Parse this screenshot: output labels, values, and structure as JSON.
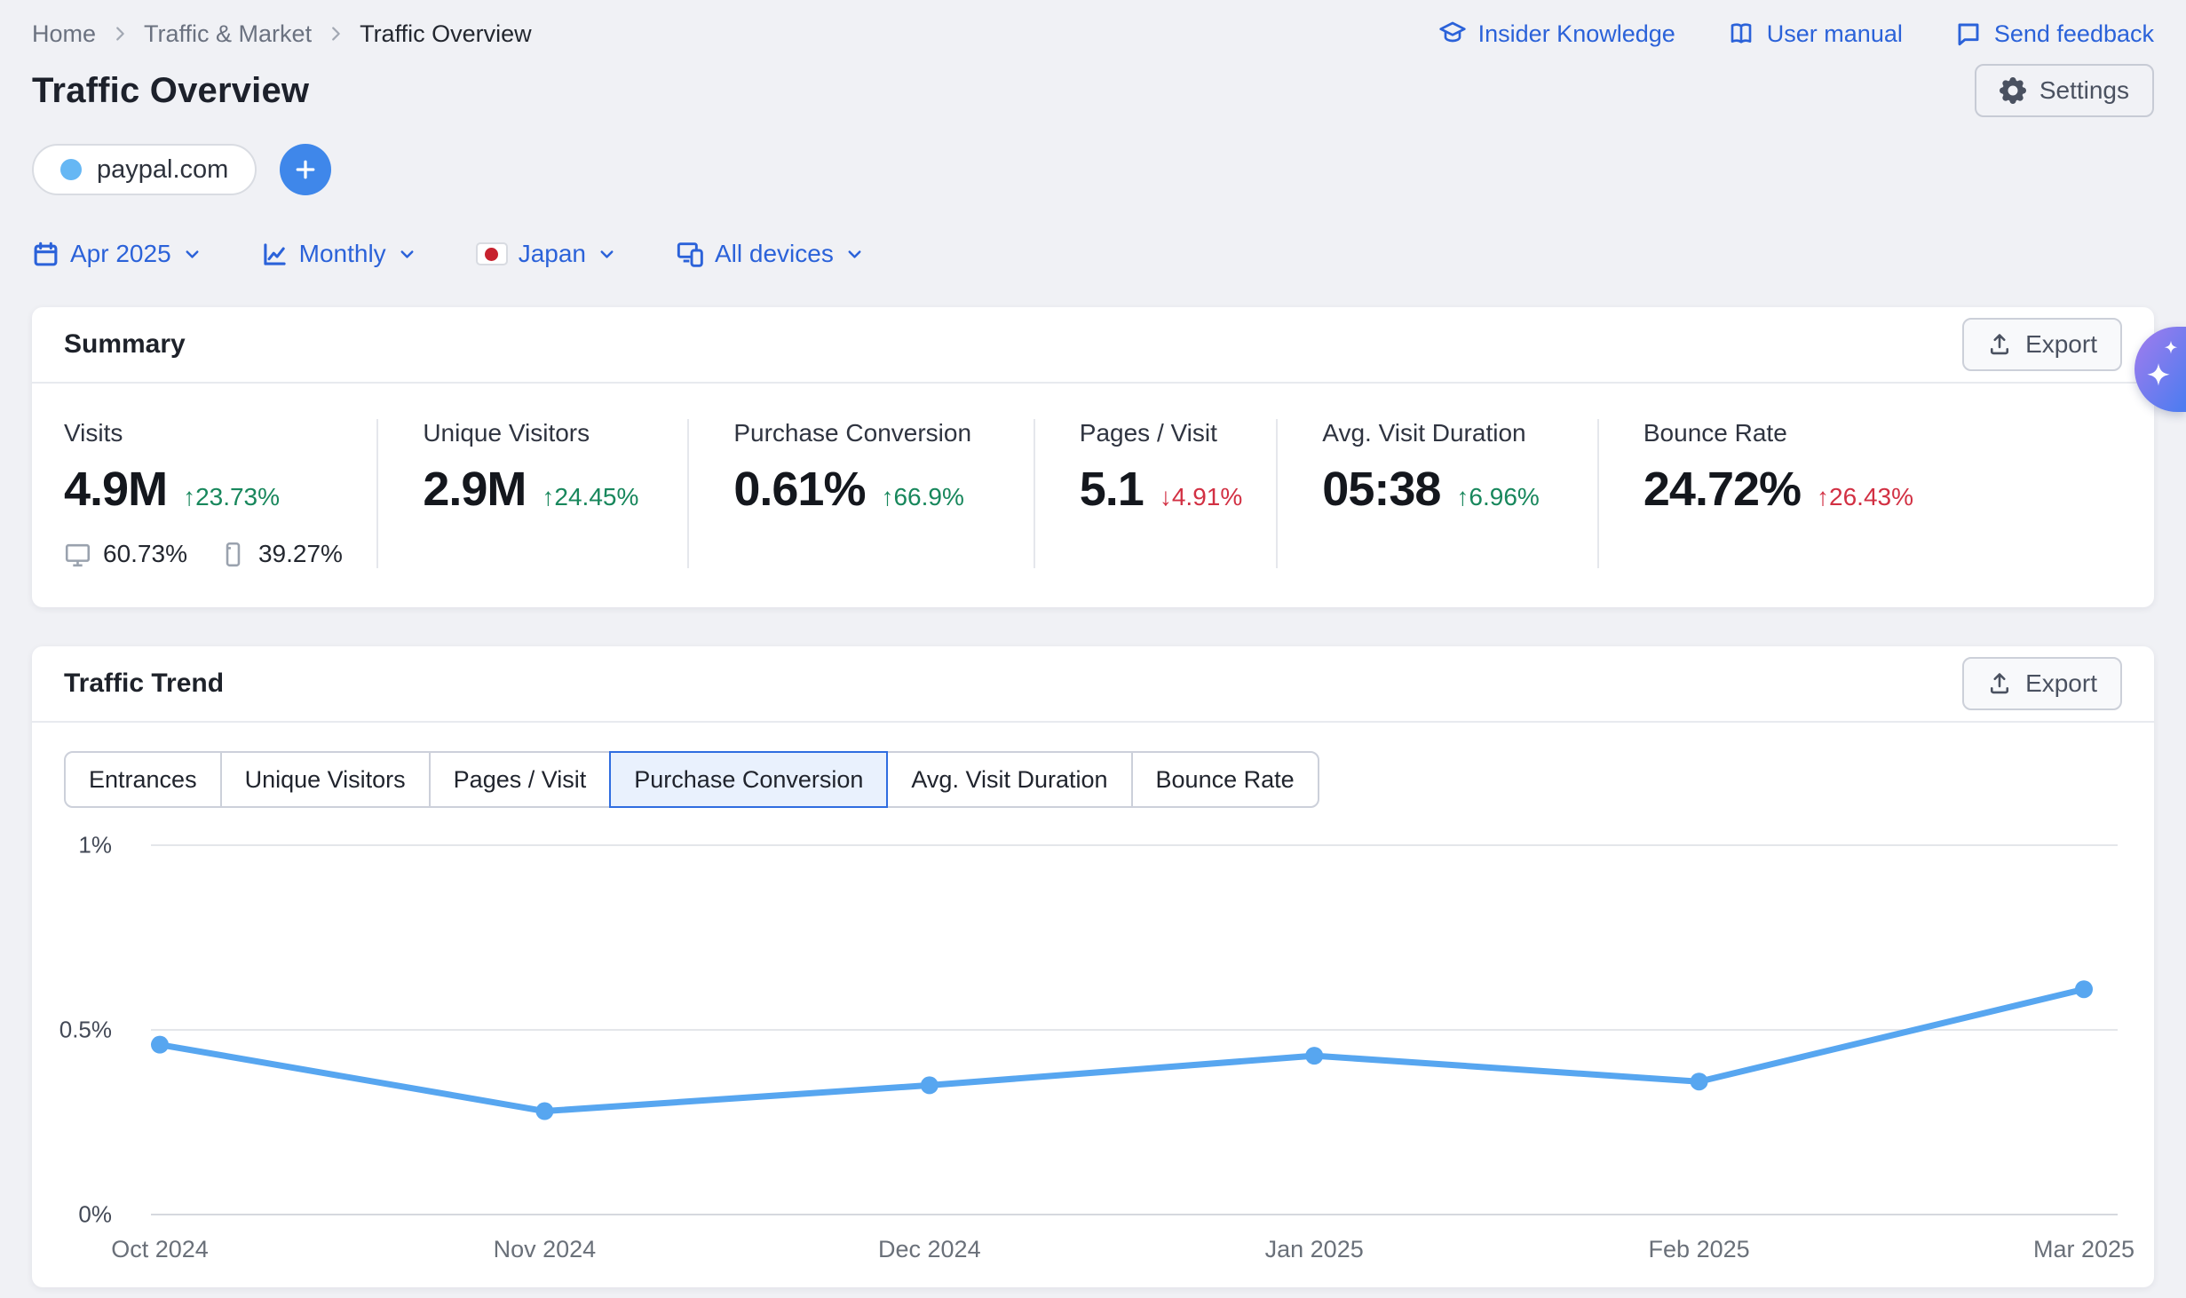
{
  "breadcrumb": {
    "items": [
      "Home",
      "Traffic & Market",
      "Traffic Overview"
    ]
  },
  "header_links": {
    "insider_knowledge": "Insider Knowledge",
    "user_manual": "User manual",
    "send_feedback": "Send feedback"
  },
  "page": {
    "title": "Traffic Overview",
    "settings_label": "Settings"
  },
  "targets": {
    "domain": "paypal.com"
  },
  "filters": {
    "date": "Apr 2025",
    "granularity": "Monthly",
    "region": "Japan",
    "devices": "All devices"
  },
  "summary": {
    "title": "Summary",
    "export_label": "Export",
    "metrics": [
      {
        "label": "Visits",
        "value": "4.9M",
        "change": "↑23.73%",
        "tone": "green",
        "shares": {
          "desktop": "60.73%",
          "mobile": "39.27%"
        }
      },
      {
        "label": "Unique Visitors",
        "value": "2.9M",
        "change": "↑24.45%",
        "tone": "green"
      },
      {
        "label": "Purchase Conversion",
        "value": "0.61%",
        "change": "↑66.9%",
        "tone": "green"
      },
      {
        "label": "Pages / Visit",
        "value": "5.1",
        "change": "↓4.91%",
        "tone": "red"
      },
      {
        "label": "Avg. Visit Duration",
        "value": "05:38",
        "change": "↑6.96%",
        "tone": "green"
      },
      {
        "label": "Bounce Rate",
        "value": "24.72%",
        "change": "↑26.43%",
        "tone": "red"
      }
    ]
  },
  "traffic_trend": {
    "title": "Traffic Trend",
    "export_label": "Export",
    "tabs": [
      {
        "label": "Entrances",
        "selected": false
      },
      {
        "label": "Unique Visitors",
        "selected": false
      },
      {
        "label": "Pages / Visit",
        "selected": false
      },
      {
        "label": "Purchase Conversion",
        "selected": true
      },
      {
        "label": "Avg. Visit Duration",
        "selected": false
      },
      {
        "label": "Bounce Rate",
        "selected": false
      }
    ]
  },
  "chart_data": {
    "type": "line",
    "title": "Traffic Trend",
    "selected_metric": "Purchase Conversion",
    "x": [
      "Oct 2024",
      "Nov 2024",
      "Dec 2024",
      "Jan 2025",
      "Feb 2025",
      "Mar 2025"
    ],
    "series": [
      {
        "name": "Purchase Conversion",
        "unit": "%",
        "color": "#57a6f0",
        "values": [
          0.46,
          0.28,
          0.35,
          0.43,
          0.36,
          0.61
        ]
      }
    ],
    "ylim": [
      0,
      1
    ],
    "yticks": [
      {
        "label": "1%",
        "value": 1
      },
      {
        "label": "0.5%",
        "value": 0.5
      },
      {
        "label": "0%",
        "value": 0
      }
    ],
    "grid": true,
    "legend": "none"
  },
  "colors": {
    "accent_blue": "#2b62d9",
    "chart_line": "#57a6f0",
    "positive_green": "#18875c",
    "negative_red": "#d23043",
    "ai_gradient_start": "#9a7ced",
    "ai_gradient_end": "#4f7cf0"
  }
}
